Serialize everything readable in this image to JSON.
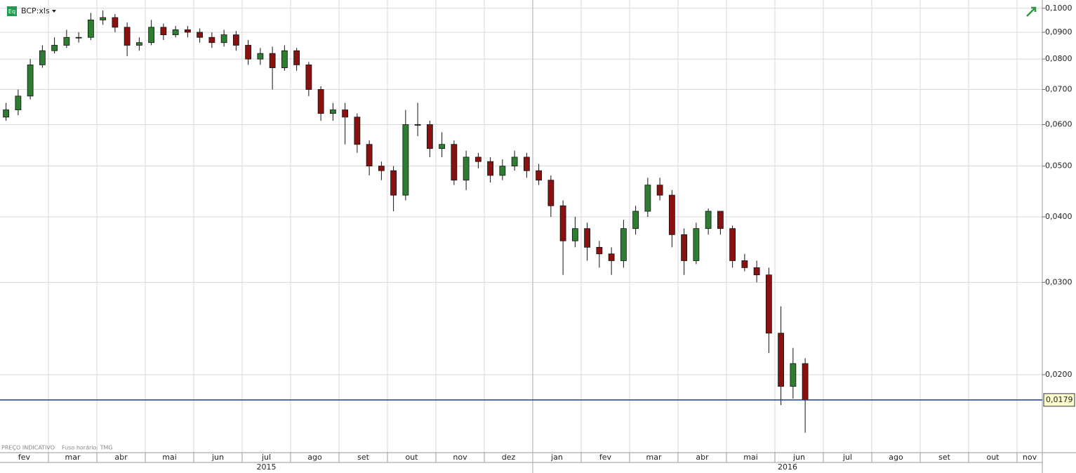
{
  "header": {
    "instrument": "BCP:xls"
  },
  "footer": {
    "note": "PREÇO INDICATIVO",
    "timezone": "Fuso horário: TMG"
  },
  "chart_data": {
    "type": "candlestick",
    "log_scale": true,
    "grid": true,
    "months": [
      "fev",
      "mar",
      "abr",
      "mai",
      "jun",
      "jul",
      "ago",
      "set",
      "out",
      "nov",
      "dez",
      "jan",
      "fev",
      "mar",
      "abr",
      "mai",
      "jun",
      "jul",
      "ago",
      "set",
      "out",
      "nov"
    ],
    "years": [
      "2015",
      "2016"
    ],
    "ylim": [
      0.0142,
      0.1037
    ],
    "yticks": [
      {
        "value": 0.02,
        "label": "0,0200"
      },
      {
        "value": 0.03,
        "label": "0,0300"
      },
      {
        "value": 0.04,
        "label": "0,0400"
      },
      {
        "value": 0.05,
        "label": "0,0500"
      },
      {
        "value": 0.06,
        "label": "0,0600"
      },
      {
        "value": 0.07,
        "label": "0,0700"
      },
      {
        "value": 0.08,
        "label": "0,0800"
      },
      {
        "value": 0.09,
        "label": "0,0900"
      },
      {
        "value": 0.1,
        "label": "0,1000"
      }
    ],
    "up_color": "#2e7d32",
    "down_color": "#8b1010",
    "last_price": {
      "value": 0.0179,
      "label": "0,0179"
    },
    "last_price_color": "#1f3a93",
    "open": [
      0.062,
      0.064,
      0.068,
      0.078,
      0.083,
      0.085,
      0.088,
      0.088,
      0.095,
      0.096,
      0.092,
      0.085,
      0.086,
      0.092,
      0.089,
      0.091,
      0.09,
      0.088,
      0.086,
      0.089,
      0.085,
      0.08,
      0.082,
      0.077,
      0.083,
      0.078,
      0.07,
      0.063,
      0.064,
      0.062,
      0.055,
      0.05,
      0.049,
      0.044,
      0.06,
      0.06,
      0.054,
      0.055,
      0.047,
      0.052,
      0.051,
      0.048,
      0.05,
      0.052,
      0.049,
      0.047,
      0.042,
      0.036,
      0.038,
      0.035,
      0.034,
      0.033,
      0.038,
      0.041,
      0.046,
      0.044,
      0.037,
      0.033,
      0.038,
      0.041,
      0.038,
      0.033,
      0.032,
      0.031,
      0.024,
      0.019,
      0.021
    ],
    "high": [
      0.066,
      0.07,
      0.08,
      0.085,
      0.088,
      0.091,
      0.09,
      0.098,
      0.099,
      0.0975,
      0.094,
      0.088,
      0.095,
      0.0935,
      0.0925,
      0.0925,
      0.0915,
      0.09,
      0.091,
      0.0905,
      0.087,
      0.084,
      0.0845,
      0.085,
      0.084,
      0.079,
      0.071,
      0.066,
      0.066,
      0.063,
      0.056,
      0.051,
      0.05,
      0.064,
      0.066,
      0.061,
      0.058,
      0.056,
      0.0535,
      0.053,
      0.052,
      0.0515,
      0.0535,
      0.053,
      0.0505,
      0.048,
      0.043,
      0.04,
      0.039,
      0.036,
      0.035,
      0.0395,
      0.042,
      0.0475,
      0.0475,
      0.045,
      0.038,
      0.039,
      0.0415,
      0.041,
      0.0385,
      0.034,
      0.033,
      0.032,
      0.027,
      0.0225,
      0.0215
    ],
    "low": [
      0.061,
      0.0625,
      0.067,
      0.077,
      0.082,
      0.084,
      0.086,
      0.087,
      0.093,
      0.09,
      0.081,
      0.083,
      0.085,
      0.087,
      0.088,
      0.088,
      0.086,
      0.084,
      0.0845,
      0.083,
      0.078,
      0.078,
      0.07,
      0.076,
      0.076,
      0.068,
      0.061,
      0.061,
      0.055,
      0.053,
      0.048,
      0.047,
      0.041,
      0.043,
      0.057,
      0.052,
      0.052,
      0.046,
      0.045,
      0.0495,
      0.0465,
      0.047,
      0.049,
      0.0475,
      0.046,
      0.04,
      0.031,
      0.035,
      0.033,
      0.032,
      0.031,
      0.032,
      0.037,
      0.04,
      0.043,
      0.035,
      0.031,
      0.0325,
      0.037,
      0.037,
      0.032,
      0.0315,
      0.03,
      0.022,
      0.0175,
      0.018,
      0.0155
    ],
    "close": [
      0.064,
      0.068,
      0.078,
      0.083,
      0.085,
      0.088,
      0.088,
      0.095,
      0.096,
      0.092,
      0.085,
      0.086,
      0.092,
      0.089,
      0.091,
      0.09,
      0.088,
      0.086,
      0.089,
      0.085,
      0.08,
      0.082,
      0.077,
      0.083,
      0.078,
      0.07,
      0.063,
      0.064,
      0.062,
      0.055,
      0.05,
      0.049,
      0.044,
      0.06,
      0.06,
      0.054,
      0.055,
      0.047,
      0.052,
      0.051,
      0.048,
      0.05,
      0.052,
      0.049,
      0.047,
      0.042,
      0.036,
      0.038,
      0.035,
      0.034,
      0.033,
      0.038,
      0.041,
      0.046,
      0.044,
      0.037,
      0.033,
      0.038,
      0.041,
      0.038,
      0.033,
      0.032,
      0.031,
      0.024,
      0.019,
      0.021,
      0.0179
    ]
  }
}
